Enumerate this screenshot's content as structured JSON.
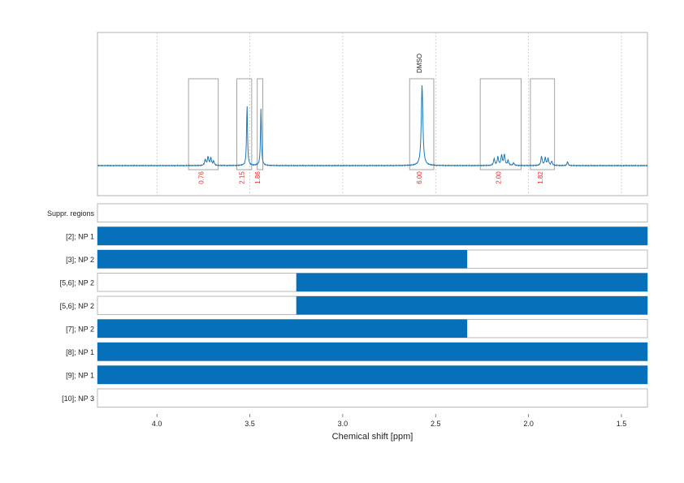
{
  "colors": {
    "spectrum": "#1f77b4",
    "bar_fill": "#0670bb",
    "integral_text": "#e8262d",
    "box_stroke": "#9a9a9a",
    "grid": "#c8c8c8"
  },
  "chart_data": {
    "type": "line",
    "xlabel": "Chemical shift [ppm]",
    "xlim": [
      4.32,
      1.36
    ],
    "x_reversed": true,
    "xticks": [
      {
        "v": 4.0,
        "label": "4.0"
      },
      {
        "v": 3.5,
        "label": "3.5"
      },
      {
        "v": 3.0,
        "label": "3.0"
      },
      {
        "v": 2.5,
        "label": "2.5"
      },
      {
        "v": 2.0,
        "label": "2.0"
      },
      {
        "v": 1.5,
        "label": "1.5"
      }
    ],
    "grid": "vertical dashed",
    "peaks": [
      {
        "ppm": 3.74,
        "height": 0.07,
        "width": 0.004
      },
      {
        "ppm": 3.725,
        "height": 0.1,
        "width": 0.004
      },
      {
        "ppm": 3.71,
        "height": 0.09,
        "width": 0.004
      },
      {
        "ppm": 3.695,
        "height": 0.05,
        "width": 0.004
      },
      {
        "ppm": 3.515,
        "height": 0.72,
        "width": 0.003
      },
      {
        "ppm": 3.44,
        "height": 0.68,
        "width": 0.003
      },
      {
        "ppm": 2.573,
        "height": 0.95,
        "width": 0.005
      },
      {
        "ppm": 2.185,
        "height": 0.08,
        "width": 0.004
      },
      {
        "ppm": 2.165,
        "height": 0.1,
        "width": 0.004
      },
      {
        "ppm": 2.145,
        "height": 0.12,
        "width": 0.004
      },
      {
        "ppm": 2.13,
        "height": 0.13,
        "width": 0.004
      },
      {
        "ppm": 2.11,
        "height": 0.06,
        "width": 0.004
      },
      {
        "ppm": 2.08,
        "height": 0.03,
        "width": 0.004
      },
      {
        "ppm": 1.93,
        "height": 0.11,
        "width": 0.004
      },
      {
        "ppm": 1.91,
        "height": 0.09,
        "width": 0.004
      },
      {
        "ppm": 1.895,
        "height": 0.08,
        "width": 0.004
      },
      {
        "ppm": 1.875,
        "height": 0.05,
        "width": 0.004
      },
      {
        "ppm": 1.79,
        "height": 0.05,
        "width": 0.003
      }
    ],
    "integration_regions": [
      {
        "from": 3.83,
        "to": 3.67,
        "integral": "0.76"
      },
      {
        "from": 3.57,
        "to": 3.49,
        "integral": "2.15"
      },
      {
        "from": 3.46,
        "to": 3.43,
        "integral": "1.86"
      },
      {
        "from": 2.64,
        "to": 2.51,
        "integral": "6.00",
        "annotation": "DMSO"
      },
      {
        "from": 2.26,
        "to": 2.04,
        "integral": "2.00"
      },
      {
        "from": 1.99,
        "to": 1.86,
        "integral": "1.82"
      }
    ],
    "tracks": [
      {
        "label": "Suppr. regions",
        "segments": []
      },
      {
        "label": "[2]; NP 1",
        "segments": [
          [
            4.32,
            1.36
          ]
        ]
      },
      {
        "label": "[3]; NP 2",
        "segments": [
          [
            4.32,
            2.33
          ]
        ]
      },
      {
        "label": "[5,6]; NP 2",
        "segments": [
          [
            3.25,
            1.36
          ]
        ]
      },
      {
        "label": "[5,6]; NP 2",
        "segments": [
          [
            3.25,
            1.36
          ]
        ]
      },
      {
        "label": "[7]; NP 2",
        "segments": [
          [
            4.32,
            2.33
          ]
        ]
      },
      {
        "label": "[8]; NP 1",
        "segments": [
          [
            4.32,
            1.36
          ]
        ]
      },
      {
        "label": "[9]; NP 1",
        "segments": [
          [
            4.32,
            1.36
          ]
        ]
      },
      {
        "label": "[10]; NP 3",
        "segments": []
      }
    ]
  }
}
